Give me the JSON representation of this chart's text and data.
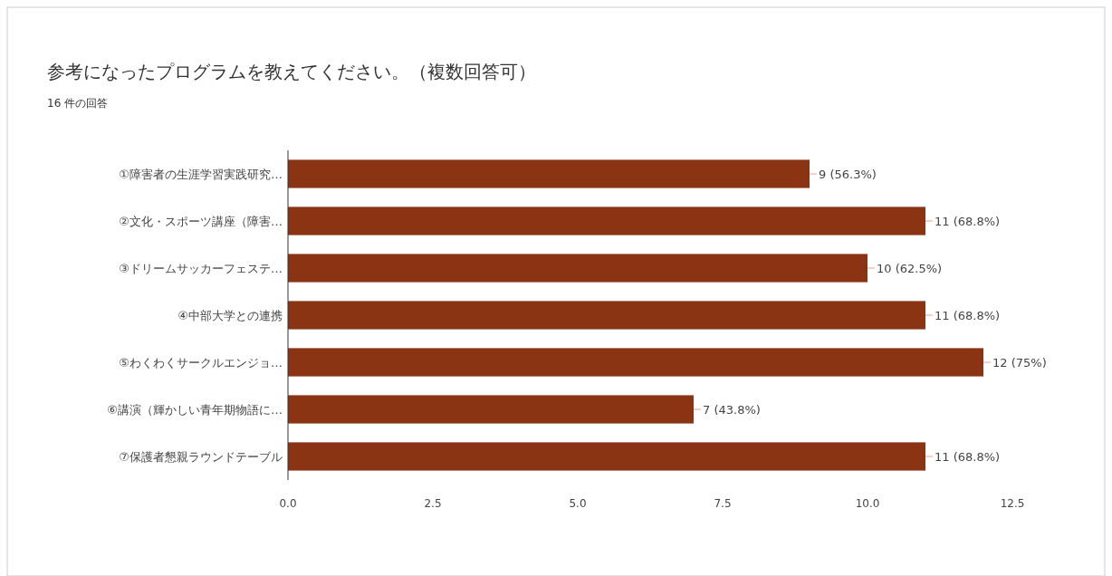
{
  "chart_data": {
    "type": "bar",
    "orientation": "horizontal",
    "title": "参考になったプログラムを教えてください。（複数回答可）",
    "subtitle": "16 件の回答",
    "categories": [
      "①障害者の生涯学習実践研究…",
      "②文化・スポーツ講座（障害…",
      "③ドリームサッカーフェステ…",
      "④中部大学との連携",
      "⑤わくわくサークルエンジョ…",
      "⑥講演（輝かしい青年期物語に…",
      "⑦保護者懇親ラウンドテーブル"
    ],
    "values": [
      9,
      11,
      10,
      11,
      12,
      7,
      11
    ],
    "value_labels": [
      "9 (56.3%)",
      "11 (68.8%)",
      "10 (62.5%)",
      "11 (68.8%)",
      "12 (75%)",
      "7 (43.8%)",
      "11 (68.8%)"
    ],
    "color": "#8a3414",
    "xlim": [
      0,
      12.5
    ],
    "xticks": [
      {
        "value": 0,
        "label": "0.0"
      },
      {
        "value": 2.5,
        "label": "2.5"
      },
      {
        "value": 5,
        "label": "5.0"
      },
      {
        "value": 7.5,
        "label": "7.5"
      },
      {
        "value": 10,
        "label": "10.0"
      },
      {
        "value": 12.5,
        "label": "12.5"
      }
    ],
    "grid": false
  }
}
